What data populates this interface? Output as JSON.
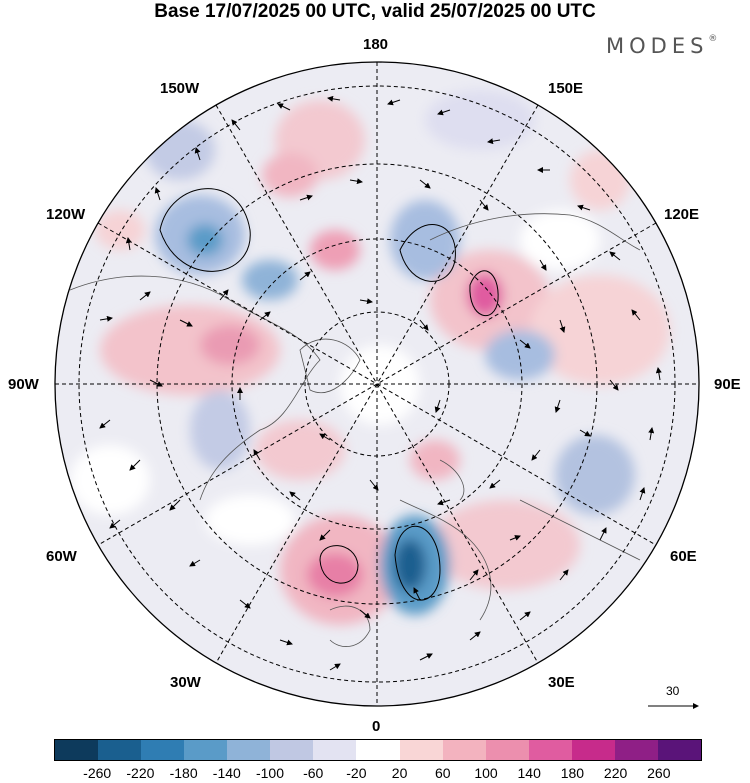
{
  "title": "Base 17/07/2025 00 UTC, valid 25/07/2025 00 UTC",
  "brand": "MODES",
  "brand_mark": "®",
  "longitude_labels": {
    "lon_180": "180",
    "lon_150w": "150W",
    "lon_150e": "150E",
    "lon_120w": "120W",
    "lon_120e": "120E",
    "lon_90w": "90W",
    "lon_90e": "90E",
    "lon_60w": "60W",
    "lon_60e": "60E",
    "lon_30w": "30W",
    "lon_30e": "30E",
    "lon_0": "0"
  },
  "vector_scale_label": "30",
  "colorbar": {
    "colors": [
      "#0d3a5c",
      "#1a5f8f",
      "#2f7db3",
      "#5a9bc8",
      "#8fb3d8",
      "#c0c8e3",
      "#e3e3f2",
      "#ffffff",
      "#f9d6d6",
      "#f3b3bf",
      "#ec8fae",
      "#e05ca0",
      "#c72b8b",
      "#8f1f86",
      "#5a1479"
    ],
    "ticks": [
      "-260",
      "-220",
      "-180",
      "-140",
      "-100",
      "-60",
      "-20",
      "20",
      "60",
      "100",
      "140",
      "180",
      "220",
      "260"
    ]
  }
}
